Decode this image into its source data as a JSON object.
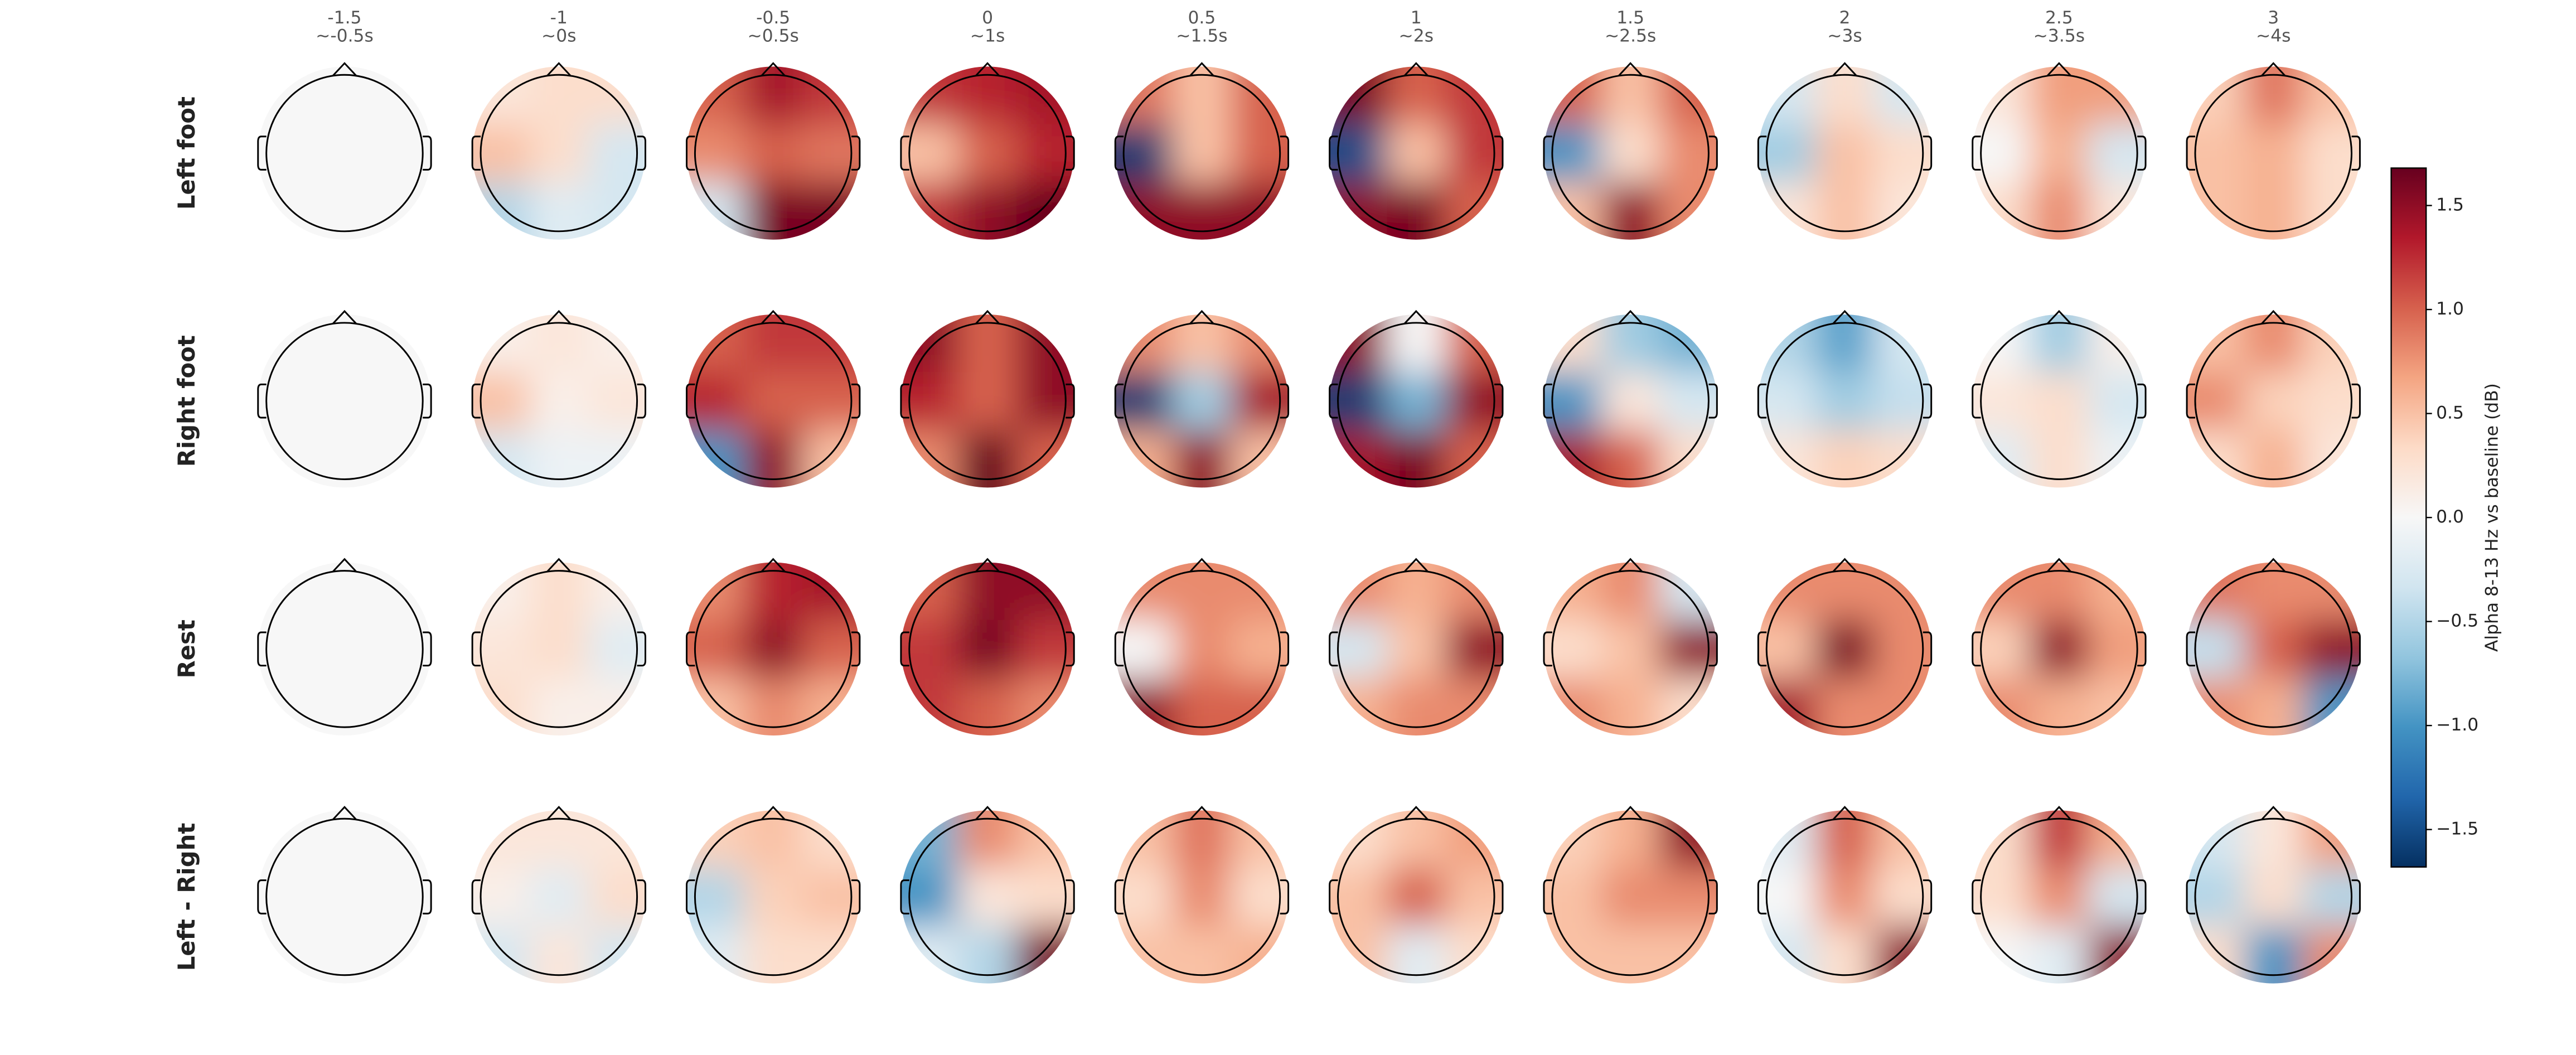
{
  "chart_data": {
    "type": "topomap",
    "columns": [
      {
        "time": "-1.5",
        "label": "~-0.5s"
      },
      {
        "time": "-1",
        "label": "~0s"
      },
      {
        "time": "-0.5",
        "label": "~0.5s"
      },
      {
        "time": "0",
        "label": "~1s"
      },
      {
        "time": "0.5",
        "label": "~1.5s"
      },
      {
        "time": "1",
        "label": "~2s"
      },
      {
        "time": "1.5",
        "label": "~2.5s"
      },
      {
        "time": "2",
        "label": "~3s"
      },
      {
        "time": "2.5",
        "label": "~3.5s"
      },
      {
        "time": "3",
        "label": "~4s"
      }
    ],
    "rows": [
      {
        "name": "Left foot",
        "maps": [
          [
            0,
            0,
            0,
            0,
            0,
            0,
            0,
            0,
            0
          ],
          [
            0.2,
            0.3,
            0.3,
            0.5,
            0.3,
            -0.3,
            -0.5,
            -0.2,
            -0.3
          ],
          [
            1.0,
            1.4,
            1.2,
            0.8,
            1.0,
            0.9,
            -0.3,
            1.6,
            1.6
          ],
          [
            1.2,
            1.3,
            1.4,
            0.5,
            1.0,
            1.3,
            1.2,
            1.5,
            1.7
          ],
          [
            0.9,
            0.5,
            1.0,
            -1.6,
            0.5,
            1.0,
            1.5,
            1.5,
            1.5
          ],
          [
            1.6,
            1.0,
            1.2,
            -1.5,
            0.5,
            1.2,
            1.5,
            1.6,
            1.0
          ],
          [
            1.0,
            0.5,
            1.0,
            -1.0,
            0.3,
            0.8,
            0.5,
            1.5,
            0.8
          ],
          [
            -0.3,
            0.3,
            -0.3,
            -0.6,
            0.5,
            0.3,
            0.2,
            0.5,
            0.2
          ],
          [
            0.2,
            0.7,
            0.7,
            0.0,
            0.6,
            -0.3,
            0.3,
            0.8,
            0.2
          ],
          [
            0.4,
            0.9,
            0.5,
            0.5,
            0.6,
            0.3,
            0.5,
            0.6,
            0.3
          ]
        ]
      },
      {
        "name": "Right foot",
        "maps": [
          [
            0,
            0,
            0,
            0,
            0,
            0,
            0,
            0,
            0
          ],
          [
            0.1,
            0.2,
            0.1,
            0.5,
            0.1,
            0.2,
            -0.3,
            -0.1,
            -0.1
          ],
          [
            1.0,
            1.2,
            1.2,
            1.3,
            1.0,
            1.0,
            -1.0,
            1.5,
            0.5
          ],
          [
            1.5,
            1.0,
            1.5,
            1.3,
            1.0,
            1.5,
            0.8,
            1.7,
            1.0
          ],
          [
            0.8,
            0.5,
            0.8,
            -1.6,
            -0.6,
            1.4,
            0.6,
            1.5,
            0.5
          ],
          [
            1.5,
            0.0,
            1.0,
            -1.6,
            -0.8,
            1.5,
            1.4,
            1.6,
            1.0
          ],
          [
            0.3,
            -0.6,
            -0.8,
            -1.0,
            0.2,
            -0.3,
            1.4,
            1.0,
            0.3
          ],
          [
            -0.5,
            -0.9,
            -0.3,
            -0.3,
            -0.6,
            -0.4,
            0.2,
            0.4,
            0.3
          ],
          [
            0.0,
            -0.6,
            0.1,
            0.2,
            0.3,
            -0.3,
            -0.2,
            0.3,
            -0.1
          ],
          [
            0.5,
            0.8,
            0.4,
            0.8,
            0.4,
            0.3,
            0.3,
            0.6,
            0.2
          ]
        ]
      },
      {
        "name": "Rest",
        "maps": [
          [
            0,
            0,
            0,
            0,
            0,
            0,
            0,
            0,
            0
          ],
          [
            0.1,
            0.3,
            0.1,
            0.2,
            0.3,
            -0.2,
            0.3,
            0.1,
            0.1
          ],
          [
            0.8,
            1.3,
            1.4,
            1.0,
            1.5,
            1.0,
            0.5,
            0.8,
            0.6
          ],
          [
            1.0,
            1.5,
            1.5,
            1.2,
            1.6,
            1.2,
            1.2,
            1.0,
            0.8
          ],
          [
            0.8,
            0.8,
            0.8,
            0.0,
            0.8,
            0.6,
            1.5,
            1.0,
            1.0
          ],
          [
            0.8,
            0.6,
            0.8,
            -0.3,
            0.5,
            1.5,
            0.6,
            0.8,
            0.8
          ],
          [
            0.6,
            0.8,
            -0.3,
            0.3,
            0.5,
            1.5,
            0.8,
            0.6,
            0.3
          ],
          [
            0.8,
            0.8,
            0.8,
            0.5,
            1.6,
            0.8,
            1.4,
            0.8,
            0.8
          ],
          [
            0.8,
            0.8,
            0.6,
            0.4,
            1.5,
            0.7,
            0.8,
            0.6,
            0.5
          ],
          [
            0.9,
            0.8,
            0.8,
            -0.4,
            1.0,
            1.5,
            0.8,
            0.6,
            -1.0
          ]
        ]
      },
      {
        "name": "Left - Right",
        "maps": [
          [
            0,
            0,
            0,
            0,
            0,
            0,
            0,
            0,
            0
          ],
          [
            0.2,
            0.2,
            0.2,
            0.1,
            -0.2,
            0.3,
            -0.3,
            0.2,
            -0.3
          ],
          [
            0.4,
            0.5,
            0.3,
            -0.5,
            0.4,
            0.5,
            -0.2,
            0.3,
            0.3
          ],
          [
            -0.8,
            0.8,
            0.5,
            -1.0,
            0.2,
            0.3,
            -0.2,
            -0.5,
            1.6
          ],
          [
            0.5,
            0.9,
            0.5,
            0.3,
            0.8,
            0.3,
            0.5,
            0.5,
            0.6
          ],
          [
            0.3,
            0.5,
            0.7,
            0.5,
            1.0,
            0.5,
            0.5,
            -0.2,
            0.3
          ],
          [
            0.4,
            0.6,
            1.5,
            0.5,
            0.8,
            0.8,
            0.5,
            0.5,
            0.5
          ],
          [
            -0.2,
            1.0,
            0.5,
            0.0,
            0.8,
            0.3,
            -0.3,
            0.3,
            1.5
          ],
          [
            0.3,
            1.2,
            0.6,
            0.3,
            0.8,
            -0.3,
            0.0,
            -0.2,
            1.5
          ],
          [
            -0.3,
            0.2,
            0.7,
            -0.5,
            0.3,
            -0.5,
            0.3,
            -1.0,
            0.8
          ]
        ]
      }
    ],
    "colorbar": {
      "label": "Alpha 8-13 Hz vs baseline (dB)",
      "lim": [
        -1.68,
        1.68
      ],
      "ticks": [
        {
          "value": -1.5,
          "label": "−1.5"
        },
        {
          "value": -1.0,
          "label": "−1.0"
        },
        {
          "value": -0.5,
          "label": "−0.5"
        },
        {
          "value": 0,
          "label": "0.0"
        },
        0.5,
        {
          "value": 1.0,
          "label": "1.0"
        },
        1.5
      ],
      "colormap": [
        "#053061",
        "#2166ac",
        "#4393c3",
        "#92c5de",
        "#d1e5f0",
        "#f7f7f7",
        "#fddbc7",
        "#f4a582",
        "#d6604d",
        "#b2182b",
        "#67001f"
      ]
    }
  }
}
